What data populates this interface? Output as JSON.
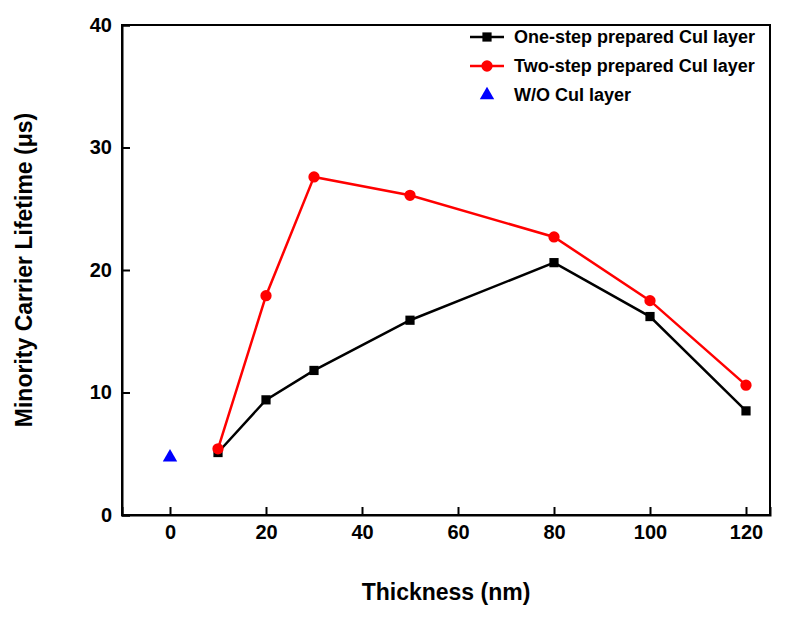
{
  "chart_data": {
    "type": "line",
    "x_label": "Thickness (nm)",
    "y_label": "Minority Carrier Lifetime (μs)",
    "x": [
      0,
      10,
      20,
      30,
      50,
      80,
      100,
      120
    ],
    "series": [
      {
        "name": "One-step prepared CuI layer",
        "color": "#000000",
        "marker": "square",
        "line_style": "solid",
        "values": [
          null,
          5.1,
          9.4,
          11.8,
          15.9,
          20.6,
          16.2,
          8.5
        ]
      },
      {
        "name": "Two-step prepared CuI layer",
        "color": "#ff0000",
        "marker": "circle",
        "line_style": "solid",
        "values": [
          null,
          5.4,
          17.9,
          27.6,
          26.1,
          22.7,
          17.5,
          10.6
        ]
      },
      {
        "name": "W/O CuI layer",
        "color": "#0000ff",
        "marker": "triangle",
        "line_style": "none",
        "values": [
          4.7,
          null,
          null,
          null,
          null,
          null,
          null,
          null
        ]
      }
    ],
    "xlim": [
      -10,
      125
    ],
    "xticks": [
      0,
      20,
      40,
      60,
      80,
      100,
      120
    ],
    "ylim": [
      0,
      40
    ],
    "yticks": [
      0,
      10,
      20,
      30,
      40
    ],
    "grid": false,
    "legend": "upper right"
  }
}
